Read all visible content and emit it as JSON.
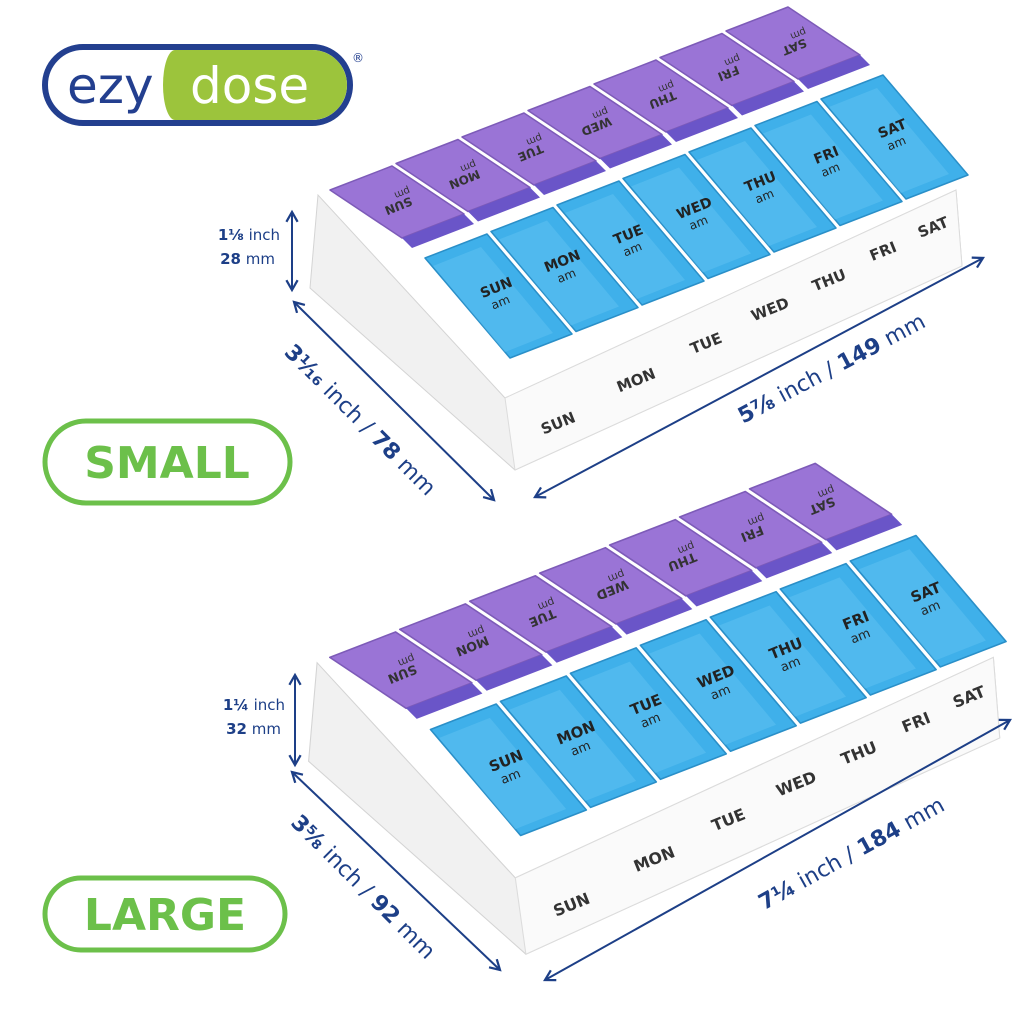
{
  "logo": {
    "left_text": "ezy",
    "right_text": "dose",
    "mark": "®",
    "colors": {
      "blue": "#233f8f",
      "green": "#9cc43c"
    }
  },
  "days": [
    "SUN",
    "MON",
    "TUE",
    "WED",
    "THU",
    "FRI",
    "SAT"
  ],
  "lid_labels": {
    "am": "am",
    "pm": "pm"
  },
  "colors": {
    "am_lid": "#3fb0ea",
    "pm_lid": "#9a74d6",
    "tray": "#f1f1f1",
    "dimension": "#1d3f87",
    "badge": "#6cc04a"
  },
  "small": {
    "badge": "SMALL",
    "height": {
      "inch": "1⅛",
      "inch_unit": "inch",
      "mm": "28",
      "mm_unit": "mm"
    },
    "depth": {
      "inch": "3¹⁄₁₆",
      "inch_unit": " inch / ",
      "mm": "78",
      "mm_unit": " mm"
    },
    "width": {
      "inch": "5⅞",
      "inch_unit": " inch / ",
      "mm": "149",
      "mm_unit": " mm"
    }
  },
  "large": {
    "badge": "LARGE",
    "height": {
      "inch": "1¼",
      "inch_unit": "inch",
      "mm": "32",
      "mm_unit": "mm"
    },
    "depth": {
      "inch": "3⅝",
      "inch_unit": " inch / ",
      "mm": "92",
      "mm_unit": " mm"
    },
    "width": {
      "inch": "7¼",
      "inch_unit": " inch / ",
      "mm": "184",
      "mm_unit": " mm"
    }
  }
}
